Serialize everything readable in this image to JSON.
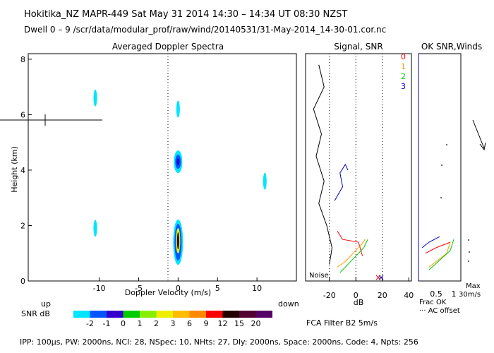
{
  "header": {
    "line1": "Hokitika_NZ   MAPR-449   Sat May 31 2014 14:30 – 14:34 UT 08:30 NZST",
    "line2": "Dwell   0 –   9    /scr/data/modular_prof/raw/wind/20140531/31-May-2014_14-30-01.cor.nc"
  },
  "footer": {
    "params": "IPP: 100μs,   PW: 2000ns,   NCI:   28,   NSpec: 10,  NHts: 27,   Dly: 2000ns,   Space: 2000ns,   Code: 4,   Npts: 256",
    "filter": "FCA Filter B2    5m/s"
  },
  "colors": {
    "snr_scale": [
      "#00e5ff",
      "#0055ff",
      "#3300cc",
      "#00cc00",
      "#88ee00",
      "#eeee00",
      "#ffbb00",
      "#ff8800",
      "#ff0000",
      "#220000",
      "#550033",
      "#550066"
    ],
    "channel_0": "#ff0000",
    "channel_1": "#ff9900",
    "channel_2": "#00cc00",
    "channel_3": "#0000cc"
  },
  "chart_data": [
    {
      "type": "heatmap",
      "title": "Averaged Doppler Spectra",
      "xlabel": "Doppler Velocity (m/s)",
      "ylabel": "Height (km)",
      "xlim": [
        -19,
        15
      ],
      "ylim": [
        0,
        8.2
      ],
      "x_ticks": [
        "-10",
        "-5",
        "0",
        "5",
        "10"
      ],
      "y_ticks": [
        "0",
        "2",
        "4",
        "6",
        "8"
      ],
      "left_label": "up",
      "right_label": "down",
      "colorbar": {
        "label": "SNR dB",
        "tick_labels": [
          "-2",
          "-1",
          "0",
          "1",
          "2",
          "3",
          "6",
          "9",
          "12",
          "15",
          "20"
        ]
      },
      "echoes": [
        {
          "velocity": 0,
          "height": 1.4,
          "snr_db": 15
        },
        {
          "velocity": 0,
          "height": 4.3,
          "snr_db": 0
        },
        {
          "velocity": 0,
          "height": 6.2,
          "snr_db": -2
        },
        {
          "velocity": -10.5,
          "height": 6.6,
          "snr_db": -2
        },
        {
          "velocity": -10.5,
          "height": 1.9,
          "snr_db": -2
        },
        {
          "velocity": 11,
          "height": 3.6,
          "snr_db": -2
        }
      ]
    },
    {
      "type": "line",
      "title": "Signal, SNR",
      "xlabel": "dB",
      "x_ticks": [
        "-20",
        "0",
        "20",
        "40"
      ],
      "xlim": [
        -38,
        42
      ],
      "ylim": [
        0,
        8.2
      ],
      "annotation": "Noise",
      "series": [
        {
          "name": "0",
          "x": [
            -14,
            -10,
            2,
            5
          ],
          "y": [
            1.8,
            1.5,
            1.4,
            0.9
          ]
        },
        {
          "name": "1",
          "x": [
            -14,
            -8,
            4,
            7
          ],
          "y": [
            0.5,
            0.7,
            1.3,
            1.5
          ]
        },
        {
          "name": "2",
          "x": [
            -12,
            -6,
            6,
            9
          ],
          "y": [
            0.3,
            0.6,
            1.2,
            1.5
          ]
        },
        {
          "name": "3",
          "x": [
            -16,
            -10,
            -12,
            -8,
            -6
          ],
          "y": [
            2.9,
            3.4,
            3.9,
            4.2,
            4.0
          ]
        }
      ]
    },
    {
      "type": "line",
      "title": "OK SNR,Winds",
      "xlabel": "Frac OK",
      "x_ticks": [
        "0.5",
        "1"
      ],
      "notes": [
        "Max",
        "30m/s",
        "··· AC offset"
      ],
      "series": [
        {
          "name": "0",
          "x": [
            0.2,
            0.5,
            0.9
          ],
          "y": [
            1.0,
            1.2,
            1.4
          ]
        },
        {
          "name": "1",
          "x": [
            0.3,
            0.8,
            0.9
          ],
          "y": [
            0.5,
            1.0,
            1.4
          ]
        },
        {
          "name": "2",
          "x": [
            0.3,
            0.9,
            1.0
          ],
          "y": [
            0.4,
            1.1,
            1.5
          ]
        },
        {
          "name": "3",
          "x": [
            0.1,
            0.3,
            0.6
          ],
          "y": [
            1.2,
            1.4,
            1.6
          ]
        }
      ]
    }
  ]
}
